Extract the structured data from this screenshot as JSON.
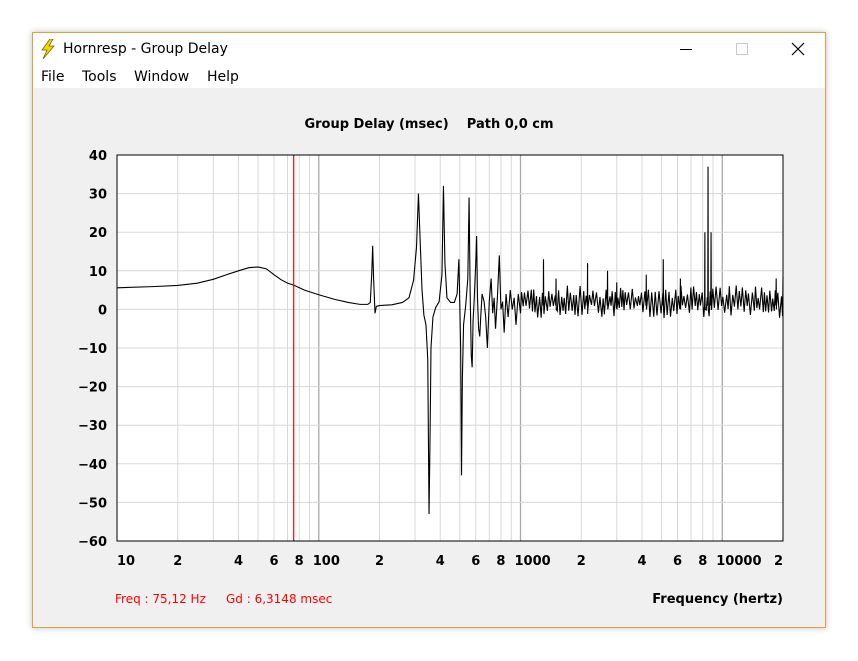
{
  "window": {
    "title": "Hornresp - Group Delay",
    "icon": "lightning-icon"
  },
  "menu": {
    "items": [
      {
        "id": "file",
        "label": "File"
      },
      {
        "id": "tools",
        "label": "Tools"
      },
      {
        "id": "window",
        "label": "Window"
      },
      {
        "id": "help",
        "label": "Help"
      }
    ]
  },
  "readout": {
    "freq": "Freq : 75,12 Hz",
    "gd": "Gd : 6,3148 msec"
  },
  "colors": {
    "cursor": "#ff0000",
    "trace": "#000000",
    "grid_minor": "#d8d8d8",
    "grid_major": "#a8a8a8"
  },
  "chart_data": {
    "type": "line",
    "title": "Group Delay (msec)    Path 0,0 cm",
    "xlabel": "Frequency (hertz)",
    "ylabel": "",
    "x_scale": "log",
    "xlim": [
      10,
      20000
    ],
    "ylim": [
      -60,
      40
    ],
    "y_ticks": [
      40,
      30,
      20,
      10,
      0,
      -10,
      -20,
      -30,
      -40,
      -50,
      -60
    ],
    "x_tick_labels": [
      {
        "value": 10,
        "label": "10"
      },
      {
        "value": 20,
        "label": "2"
      },
      {
        "value": 40,
        "label": "4"
      },
      {
        "value": 60,
        "label": "6"
      },
      {
        "value": 80,
        "label": "8"
      },
      {
        "value": 100,
        "label": "100"
      },
      {
        "value": 200,
        "label": "2"
      },
      {
        "value": 400,
        "label": "4"
      },
      {
        "value": 600,
        "label": "6"
      },
      {
        "value": 800,
        "label": "8"
      },
      {
        "value": 1000,
        "label": "1000"
      },
      {
        "value": 2000,
        "label": "2"
      },
      {
        "value": 4000,
        "label": "4"
      },
      {
        "value": 6000,
        "label": "6"
      },
      {
        "value": 8000,
        "label": "8"
      },
      {
        "value": 10000,
        "label": "10000"
      },
      {
        "value": 20000,
        "label": "2"
      }
    ],
    "grid": true,
    "cursor_x": 75.12,
    "series": [
      {
        "points": [
          [
            10,
            5.6
          ],
          [
            15,
            5.9
          ],
          [
            20,
            6.2
          ],
          [
            25,
            6.8
          ],
          [
            30,
            7.8
          ],
          [
            35,
            9.0
          ],
          [
            40,
            10.0
          ],
          [
            45,
            10.8
          ],
          [
            50,
            11.0
          ],
          [
            55,
            10.5
          ],
          [
            60,
            9.0
          ],
          [
            65,
            7.7
          ],
          [
            70,
            6.8
          ],
          [
            75.12,
            6.3
          ],
          [
            85,
            5.0
          ],
          [
            100,
            3.8
          ],
          [
            120,
            2.6
          ],
          [
            140,
            1.8
          ],
          [
            160,
            1.3
          ],
          [
            175,
            1.3
          ],
          [
            180,
            1.8
          ],
          [
            183,
            9
          ],
          [
            185,
            16.5
          ],
          [
            187,
            8
          ],
          [
            190,
            -1
          ],
          [
            193,
            0.8
          ],
          [
            200,
            1.0
          ],
          [
            230,
            1.2
          ],
          [
            260,
            1.8
          ],
          [
            280,
            3.0
          ],
          [
            295,
            7.5
          ],
          [
            305,
            16
          ],
          [
            312,
            30
          ],
          [
            318,
            18
          ],
          [
            325,
            5
          ],
          [
            332,
            -1.5
          ],
          [
            340,
            -4
          ],
          [
            347,
            -13
          ],
          [
            352,
            -53
          ],
          [
            356,
            -34
          ],
          [
            360,
            -10
          ],
          [
            368,
            -2
          ],
          [
            380,
            0.5
          ],
          [
            395,
            2.0
          ],
          [
            408,
            9
          ],
          [
            415,
            32
          ],
          [
            422,
            12
          ],
          [
            432,
            3
          ],
          [
            450,
            1.8
          ],
          [
            470,
            1.8
          ],
          [
            485,
            4
          ],
          [
            495,
            13
          ],
          [
            500,
            1.5
          ],
          [
            505,
            -10
          ],
          [
            510,
            -43
          ],
          [
            515,
            -18
          ],
          [
            522,
            -4
          ],
          [
            535,
            1
          ],
          [
            548,
            8
          ],
          [
            556,
            29
          ],
          [
            563,
            4
          ],
          [
            570,
            -12
          ],
          [
            576,
            -15
          ],
          [
            582,
            -3
          ],
          [
            590,
            3
          ],
          [
            600,
            12
          ],
          [
            606,
            19
          ],
          [
            612,
            3
          ],
          [
            620,
            -5
          ],
          [
            628,
            -7
          ],
          [
            635,
            -2
          ],
          [
            645,
            4
          ],
          [
            660,
            2
          ],
          [
            672,
            -2
          ],
          [
            685,
            -10
          ],
          [
            700,
            2
          ],
          [
            715,
            8
          ],
          [
            728,
            -1
          ],
          [
            740,
            3
          ],
          [
            752,
            -5
          ],
          [
            768,
            3
          ],
          [
            785,
            14
          ],
          [
            800,
            0
          ],
          [
            815,
            2
          ],
          [
            830,
            -6
          ],
          [
            848,
            4
          ],
          [
            868,
            -2
          ],
          [
            890,
            5
          ],
          [
            910,
            0
          ],
          [
            930,
            3
          ],
          [
            950,
            -4
          ],
          [
            975,
            4
          ],
          [
            1000,
            -1
          ]
        ]
      }
    ],
    "noise_band": {
      "from_hz": 1000,
      "to_hz": 20000,
      "center": 2,
      "amplitude": 3.5
    },
    "upper_spikes": [
      {
        "x": 1300,
        "y": 13
      },
      {
        "x": 1500,
        "y": 8
      },
      {
        "x": 2150,
        "y": 12
      },
      {
        "x": 2700,
        "y": 10
      },
      {
        "x": 3000,
        "y": 7
      },
      {
        "x": 4200,
        "y": 9
      },
      {
        "x": 5100,
        "y": 13
      },
      {
        "x": 6200,
        "y": 8
      },
      {
        "x": 8200,
        "y": 20
      },
      {
        "x": 8500,
        "y": 37
      },
      {
        "x": 8800,
        "y": 20
      },
      {
        "x": 18500,
        "y": 8
      }
    ]
  }
}
